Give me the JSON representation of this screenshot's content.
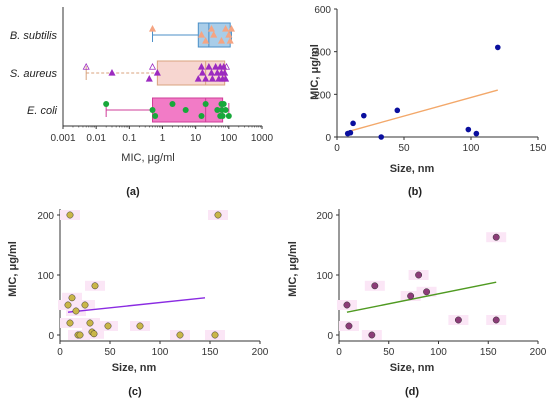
{
  "colors": {
    "axis": "#333333",
    "bsubtilis_box": "#a9cde9",
    "bsubtilis_edge": "#4b8fc7",
    "saureus_box": "#f7d6d0",
    "saureus_edge": "#d9a37e",
    "saureus_marker": "#9c2bc0",
    "ecoli_box": "#f27bc6",
    "ecoli_edge": "#cf3c98",
    "ecoli_marker": "#18a83a",
    "b_marker": "#0a0f9e",
    "b_line": "#f3a86a",
    "c_marker": "#c9b648",
    "c_line": "#8a2be2",
    "d_marker": "#8c3c78",
    "d_line": "#4f9a21",
    "halo": "#fbe6f6"
  },
  "chart_data": [
    {
      "panel": "(a)",
      "type": "box",
      "xlabel": "MIC, μg/ml",
      "ylabel": "",
      "xscale": "log",
      "xlim": [
        0.001,
        1000
      ],
      "xticks": [
        "0.001",
        "0.01",
        "0.1",
        "1",
        "10",
        "100",
        "1000"
      ],
      "categories": [
        "B. subtilis",
        "S. aureus",
        "E. coli"
      ],
      "boxes": [
        {
          "name": "B. subtilis",
          "whisker_low": 0.5,
          "q1": 12,
          "median": 25,
          "q3": 110,
          "whisker_high": 120,
          "points": [
            0.5,
            15,
            20,
            30,
            35,
            60,
            80,
            100,
            110,
            120
          ],
          "marker": "triangle-up"
        },
        {
          "name": "S. aureus",
          "whisker_low": 0.005,
          "q1": 0.7,
          "median": 20,
          "q3": 75,
          "whisker_high": 80,
          "points": [
            0.005,
            0.03,
            0.4,
            0.5,
            0.7,
            12,
            15,
            16,
            20,
            25,
            30,
            32,
            40,
            45,
            50,
            55,
            60,
            65,
            70,
            75,
            80,
            85
          ],
          "marker": "triangle-up"
        },
        {
          "name": "E. coli",
          "whisker_low": 0.02,
          "q1": 0.5,
          "median": 20,
          "q3": 65,
          "whisker_high": 100,
          "points": [
            0.02,
            0.5,
            0.6,
            2,
            5,
            15,
            20,
            45,
            55,
            60,
            62,
            65,
            70,
            80,
            100
          ],
          "marker": "circle"
        }
      ]
    },
    {
      "panel": "(b)",
      "type": "scatter",
      "xlabel": "Size, nm",
      "ylabel": "MIC, μg/ml",
      "xlim": [
        0,
        150
      ],
      "ylim": [
        0,
        600
      ],
      "xticks": [
        0,
        50,
        100,
        150
      ],
      "yticks": [
        0,
        200,
        400,
        600
      ],
      "points": [
        [
          8,
          16
        ],
        [
          10,
          20
        ],
        [
          12,
          64
        ],
        [
          20,
          100
        ],
        [
          33,
          0
        ],
        [
          45,
          125
        ],
        [
          98,
          35
        ],
        [
          104,
          16
        ],
        [
          120,
          420
        ]
      ],
      "trendline": [
        [
          8,
          25
        ],
        [
          120,
          220
        ]
      ]
    },
    {
      "panel": "(c)",
      "type": "scatter",
      "xlabel": "Size, nm",
      "ylabel": "MIC, μg/ml",
      "xlim": [
        0,
        200
      ],
      "ylim": [
        -10,
        210
      ],
      "xticks": [
        0,
        50,
        100,
        150,
        200
      ],
      "yticks": [
        0,
        100,
        200
      ],
      "points": [
        [
          8,
          50
        ],
        [
          10,
          20
        ],
        [
          10,
          200
        ],
        [
          12,
          62
        ],
        [
          16,
          40
        ],
        [
          18,
          0
        ],
        [
          20,
          0
        ],
        [
          25,
          50
        ],
        [
          30,
          20
        ],
        [
          32,
          5
        ],
        [
          34,
          2
        ],
        [
          35,
          82
        ],
        [
          48,
          15
        ],
        [
          80,
          15
        ],
        [
          120,
          0
        ],
        [
          155,
          0
        ],
        [
          158,
          200
        ]
      ],
      "trendline": [
        [
          8,
          38
        ],
        [
          145,
          62
        ]
      ]
    },
    {
      "panel": "(d)",
      "type": "scatter",
      "xlabel": "Size, nm",
      "ylabel": "MIC, μg/ml",
      "xlim": [
        0,
        200
      ],
      "ylim": [
        -10,
        210
      ],
      "xticks": [
        0,
        50,
        100,
        150,
        200
      ],
      "yticks": [
        0,
        100,
        200
      ],
      "points": [
        [
          8,
          50
        ],
        [
          10,
          15
        ],
        [
          33,
          0
        ],
        [
          36,
          82
        ],
        [
          72,
          65
        ],
        [
          80,
          100
        ],
        [
          88,
          72
        ],
        [
          120,
          25
        ],
        [
          158,
          25
        ],
        [
          158,
          163
        ]
      ],
      "trendline": [
        [
          8,
          38
        ],
        [
          158,
          88
        ]
      ]
    }
  ]
}
